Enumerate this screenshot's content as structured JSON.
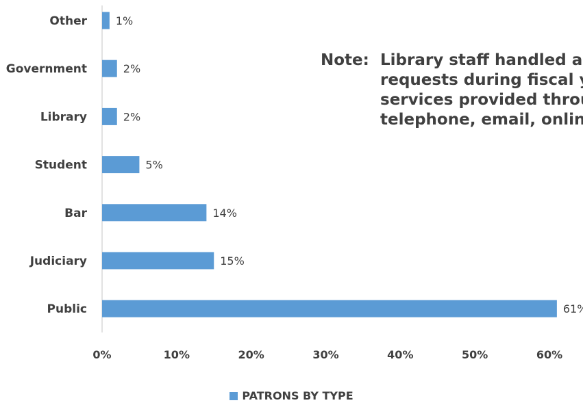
{
  "chart_data": {
    "type": "bar",
    "orientation": "horizontal",
    "categories": [
      "Other",
      "Government",
      "Library",
      "Student",
      "Bar",
      "Judiciary",
      "Public"
    ],
    "values": [
      1,
      2,
      2,
      5,
      14,
      15,
      61
    ],
    "value_labels": [
      "1%",
      "2%",
      "2%",
      "5%",
      "14%",
      "15%",
      "61%"
    ],
    "series": [
      {
        "name": "PATRONS BY TYPE",
        "values": [
          1,
          2,
          2,
          5,
          14,
          15,
          61
        ]
      }
    ],
    "xlim": [
      0,
      60
    ],
    "x_ticks": [
      0,
      10,
      20,
      30,
      40,
      50,
      60
    ],
    "x_tick_labels": [
      "0%",
      "10%",
      "20%",
      "30%",
      "40%",
      "50%",
      "60%"
    ],
    "grid": false,
    "legend_position": "bottom",
    "colors": {
      "bar": "#5b9bd5",
      "text": "#404040",
      "axis": "#d9d9d9"
    }
  },
  "note": {
    "label": "Note:",
    "lines": [
      "Library staff handled a",
      "requests during fiscal y",
      "services provided throu",
      "telephone, email, onlin"
    ]
  },
  "legend": {
    "label": "PATRONS BY TYPE"
  }
}
